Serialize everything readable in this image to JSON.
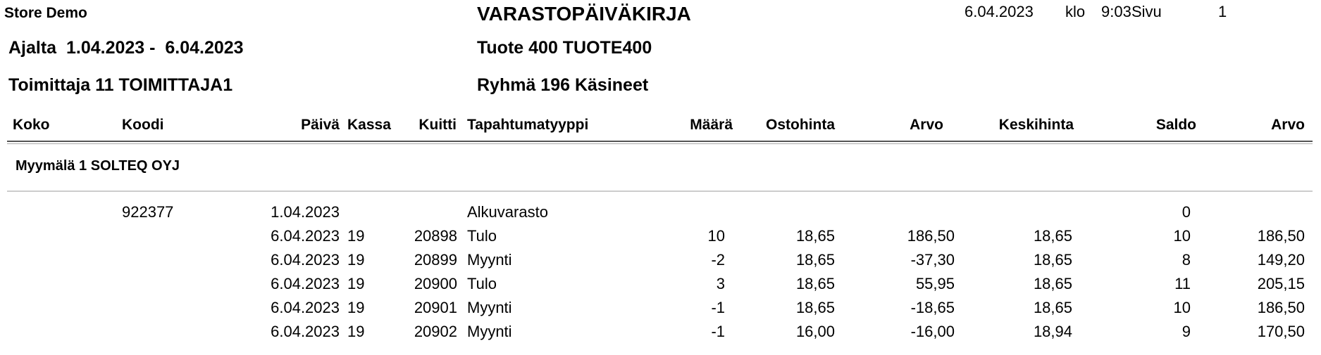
{
  "report": {
    "company": "Store Demo",
    "title": "VARASTOPÄIVÄKIRJA",
    "print_date": "6.04.2023",
    "time_label": "klo",
    "time": "9:03",
    "page_label": "Sivu",
    "page_number": "1",
    "period": "Ajalta  1.04.2023 -  6.04.2023",
    "product": "Tuote 400 TUOTE400",
    "supplier": "Toimittaja 11 TOIMITTAJA1",
    "group": "Ryhmä 196 Käsineet"
  },
  "columns": [
    "Koko",
    "Koodi",
    "Päivä",
    "Kassa",
    "Kuitti",
    "Tapahtumatyyppi",
    "Määrä",
    "Ostohinta",
    "Arvo",
    "Keskihinta",
    "Saldo",
    "Arvo"
  ],
  "store": "Myymälä 1 SOLTEQ OYJ",
  "rows": [
    {
      "koko": "",
      "koodi": "922377",
      "paiva": "1.04.2023",
      "kassa": "",
      "kuitti": "",
      "tyyppi": "Alkuvarasto",
      "maara": "",
      "ostohinta": "",
      "arvo": "",
      "keskihinta": "",
      "saldo": "0",
      "saldo_arvo": ""
    },
    {
      "koko": "",
      "koodi": "",
      "paiva": "6.04.2023",
      "kassa": "19",
      "kuitti": "20898",
      "tyyppi": "Tulo",
      "maara": "10",
      "ostohinta": "18,65",
      "arvo": "186,50",
      "keskihinta": "18,65",
      "saldo": "10",
      "saldo_arvo": "186,50"
    },
    {
      "koko": "",
      "koodi": "",
      "paiva": "6.04.2023",
      "kassa": "19",
      "kuitti": "20899",
      "tyyppi": "Myynti",
      "maara": "-2",
      "ostohinta": "18,65",
      "arvo": "-37,30",
      "keskihinta": "18,65",
      "saldo": "8",
      "saldo_arvo": "149,20"
    },
    {
      "koko": "",
      "koodi": "",
      "paiva": "6.04.2023",
      "kassa": "19",
      "kuitti": "20900",
      "tyyppi": "Tulo",
      "maara": "3",
      "ostohinta": "18,65",
      "arvo": "55,95",
      "keskihinta": "18,65",
      "saldo": "11",
      "saldo_arvo": "205,15"
    },
    {
      "koko": "",
      "koodi": "",
      "paiva": "6.04.2023",
      "kassa": "19",
      "kuitti": "20901",
      "tyyppi": "Myynti",
      "maara": "-1",
      "ostohinta": "18,65",
      "arvo": "-18,65",
      "keskihinta": "18,65",
      "saldo": "10",
      "saldo_arvo": "186,50"
    },
    {
      "koko": "",
      "koodi": "",
      "paiva": "6.04.2023",
      "kassa": "19",
      "kuitti": "20902",
      "tyyppi": "Myynti",
      "maara": "-1",
      "ostohinta": "16,00",
      "arvo": "-16,00",
      "keskihinta": "18,94",
      "saldo": "9",
      "saldo_arvo": "170,50"
    }
  ]
}
